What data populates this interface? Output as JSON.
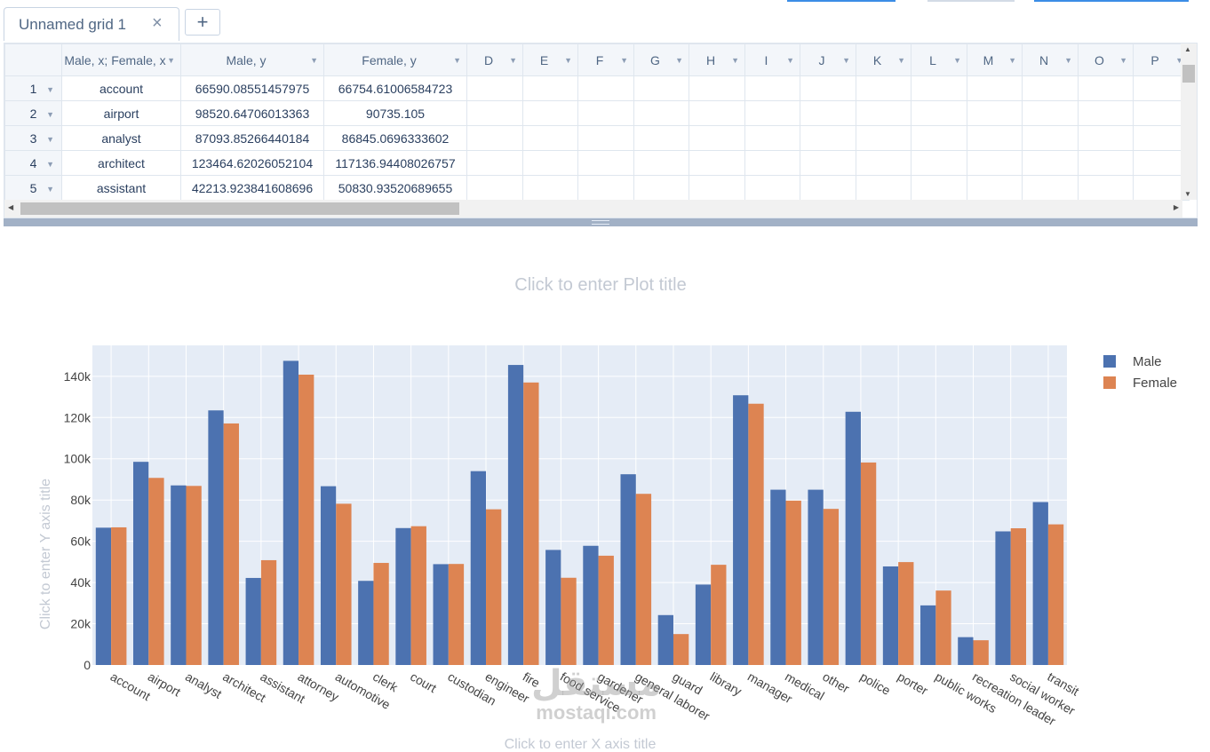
{
  "tabs": [
    {
      "label": "Unnamed grid 1",
      "close": "×"
    }
  ],
  "tab_add": "+",
  "grid": {
    "columns": [
      "Male, x; Female, x",
      "Male, y",
      "Female, y",
      "D",
      "E",
      "F",
      "G",
      "H",
      "I",
      "J",
      "K",
      "L",
      "M",
      "N",
      "O",
      "P"
    ],
    "rows": [
      {
        "num": "1",
        "cells": [
          "account",
          "66590.08551457975",
          "66754.61006584723"
        ]
      },
      {
        "num": "2",
        "cells": [
          "airport",
          "98520.64706013363",
          "90735.105"
        ]
      },
      {
        "num": "3",
        "cells": [
          "analyst",
          "87093.85266440184",
          "86845.0696333602"
        ]
      },
      {
        "num": "4",
        "cells": [
          "architect",
          "123464.62026052104",
          "117136.94408026757"
        ]
      },
      {
        "num": "5",
        "cells": [
          "assistant",
          "42213.923841608696",
          "50830.93520689655"
        ]
      }
    ]
  },
  "plot": {
    "title_placeholder": "Click to enter Plot title",
    "xaxis_placeholder": "Click to enter X axis title",
    "yaxis_placeholder": "Click to enter Y axis title"
  },
  "watermark": {
    "arabic": "مستقل",
    "latin": "mostaqi.com"
  },
  "chart_data": {
    "type": "bar",
    "categories": [
      "account",
      "airport",
      "analyst",
      "architect",
      "assistant",
      "attorney",
      "automotive",
      "clerk",
      "court",
      "custodian",
      "engineer",
      "fire",
      "food service",
      "gardener",
      "general laborer",
      "guard",
      "library",
      "manager",
      "medical",
      "other",
      "police",
      "porter",
      "public works",
      "recreation leader",
      "social worker",
      "transit"
    ],
    "series": [
      {
        "name": "Male",
        "color": "#4c72b0",
        "values": [
          66590,
          98521,
          87094,
          123465,
          42214,
          147500,
          86700,
          40800,
          66400,
          48900,
          94000,
          145500,
          55800,
          57800,
          92500,
          24200,
          39000,
          130800,
          85000,
          85000,
          122800,
          47800,
          28900,
          13500,
          64800,
          79000
        ]
      },
      {
        "name": "Female",
        "color": "#dd8452",
        "values": [
          66755,
          90735,
          86845,
          117137,
          50831,
          140800,
          78200,
          49500,
          67300,
          49000,
          75500,
          137000,
          42300,
          53000,
          83000,
          15000,
          48600,
          126700,
          79700,
          75700,
          98200,
          49900,
          36100,
          12000,
          66300,
          68200
        ]
      }
    ],
    "ylim": [
      0,
      155000
    ],
    "yticks": [
      0,
      20000,
      40000,
      60000,
      80000,
      100000,
      120000,
      140000
    ],
    "yticklabels": [
      "0",
      "20k",
      "40k",
      "60k",
      "80k",
      "100k",
      "120k",
      "140k"
    ],
    "legend_position": "top-right",
    "grid": true
  }
}
